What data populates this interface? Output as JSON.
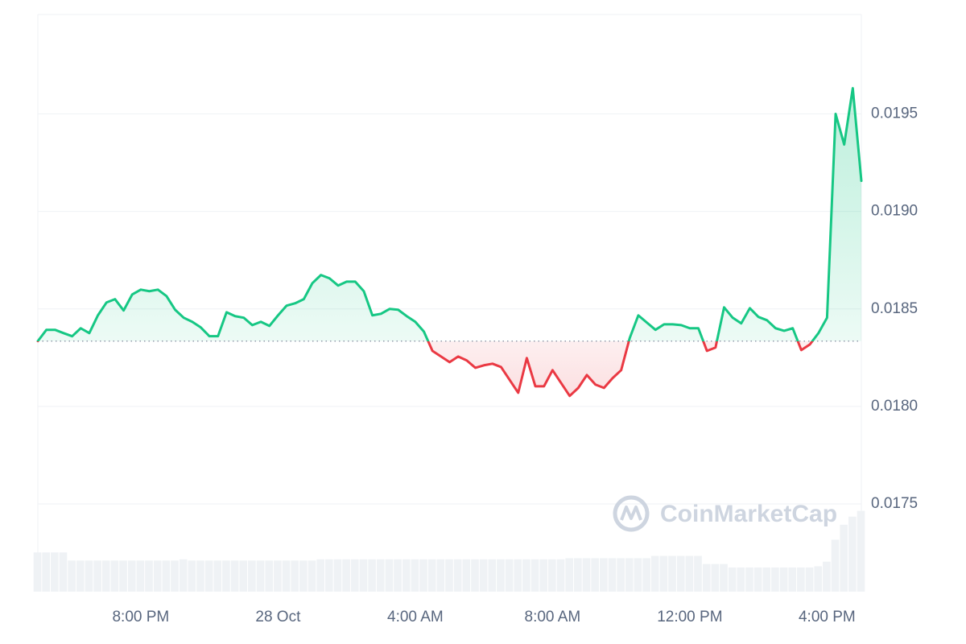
{
  "chart_data": {
    "type": "line",
    "watermark": "CoinMarketCap",
    "categories": [
      null,
      null,
      null,
      null,
      null,
      null,
      null,
      null,
      null,
      null,
      null,
      null,
      "8:00 PM",
      null,
      null,
      null,
      null,
      null,
      null,
      null,
      null,
      null,
      null,
      null,
      null,
      null,
      null,
      null,
      "28 Oct",
      null,
      null,
      null,
      null,
      null,
      null,
      null,
      null,
      null,
      null,
      null,
      null,
      null,
      null,
      null,
      "4:00 AM",
      null,
      null,
      null,
      null,
      null,
      null,
      null,
      null,
      null,
      null,
      null,
      null,
      null,
      null,
      null,
      "8:00 AM",
      null,
      null,
      null,
      null,
      null,
      null,
      null,
      null,
      null,
      null,
      null,
      null,
      null,
      null,
      null,
      "12:00 PM",
      null,
      null,
      null,
      null,
      null,
      null,
      null,
      null,
      null,
      null,
      null,
      null,
      null,
      null,
      null,
      "4:00 PM",
      null,
      null,
      null,
      null
    ],
    "baseline": 0.018335,
    "series": [
      {
        "type": "line",
        "color": "#16c784",
        "down_color": "#ea3943",
        "values": [
          0.018335,
          0.018393,
          0.018393,
          0.018376,
          0.01836,
          0.018401,
          0.018376,
          0.018467,
          0.018533,
          0.01855,
          0.018492,
          0.018574,
          0.018599,
          0.018591,
          0.018599,
          0.018566,
          0.018496,
          0.018455,
          0.018434,
          0.018405,
          0.01836,
          0.01836,
          0.018483,
          0.018463,
          0.018455,
          0.018417,
          0.018434,
          0.018413,
          0.018467,
          0.018517,
          0.018529,
          0.01855,
          0.018632,
          0.018674,
          0.018657,
          0.01862,
          0.01864,
          0.01864,
          0.018591,
          0.018467,
          0.018475,
          0.0185,
          0.018496,
          0.018463,
          0.018434,
          0.018384,
          0.018285,
          0.018256,
          0.018227,
          0.018256,
          0.018236,
          0.018198,
          0.018211,
          0.018219,
          0.018202,
          0.018136,
          0.01807,
          0.018248,
          0.018103,
          0.018103,
          0.018186,
          0.01812,
          0.018054,
          0.018095,
          0.018161,
          0.018112,
          0.018095,
          0.018145,
          0.018186,
          0.018351,
          0.018467,
          0.01843,
          0.018393,
          0.018421,
          0.018421,
          0.018417,
          0.018401,
          0.018401,
          0.018285,
          0.018302,
          0.018508,
          0.018455,
          0.018426,
          0.018504,
          0.018459,
          0.018442,
          0.018401,
          0.018388,
          0.018401,
          0.018289,
          0.018318,
          0.018376,
          0.018455,
          0.0195,
          0.019343,
          0.019632,
          0.019157
        ]
      },
      {
        "type": "bar",
        "axis": "y2",
        "color": "#eff2f5",
        "values": [
          3.4,
          3.4,
          3.4,
          3.4,
          2.7,
          2.7,
          2.7,
          2.7,
          2.7,
          2.7,
          2.7,
          2.7,
          2.7,
          2.7,
          2.7,
          2.7,
          2.7,
          2.8,
          2.7,
          2.7,
          2.7,
          2.7,
          2.7,
          2.7,
          2.7,
          2.7,
          2.7,
          2.7,
          2.7,
          2.7,
          2.7,
          2.7,
          2.7,
          2.8,
          2.8,
          2.8,
          2.8,
          2.8,
          2.8,
          2.8,
          2.8,
          2.8,
          2.8,
          2.8,
          2.8,
          2.8,
          2.8,
          2.8,
          2.8,
          2.8,
          2.8,
          2.8,
          2.8,
          2.8,
          2.8,
          2.8,
          2.8,
          2.8,
          2.8,
          2.8,
          2.8,
          2.8,
          2.9,
          2.9,
          2.9,
          2.9,
          2.9,
          2.9,
          2.9,
          2.9,
          2.9,
          2.9,
          3.1,
          3.1,
          3.1,
          3.1,
          3.1,
          3.1,
          2.4,
          2.4,
          2.4,
          2.1,
          2.1,
          2.1,
          2.1,
          2.1,
          2.1,
          2.1,
          2.1,
          2.1,
          2.1,
          2.2,
          2.6,
          4.5,
          5.8,
          6.5,
          7.0
        ]
      }
    ],
    "ylim": [
      0.01705,
      0.02001
    ],
    "yticks": [
      0.0175,
      {
        "value": 0.018,
        "label": "0.0180"
      },
      0.0185,
      {
        "value": 0.019,
        "label": "0.0190"
      },
      0.0195
    ],
    "y2lim": [
      0,
      50
    ],
    "grid": true
  }
}
